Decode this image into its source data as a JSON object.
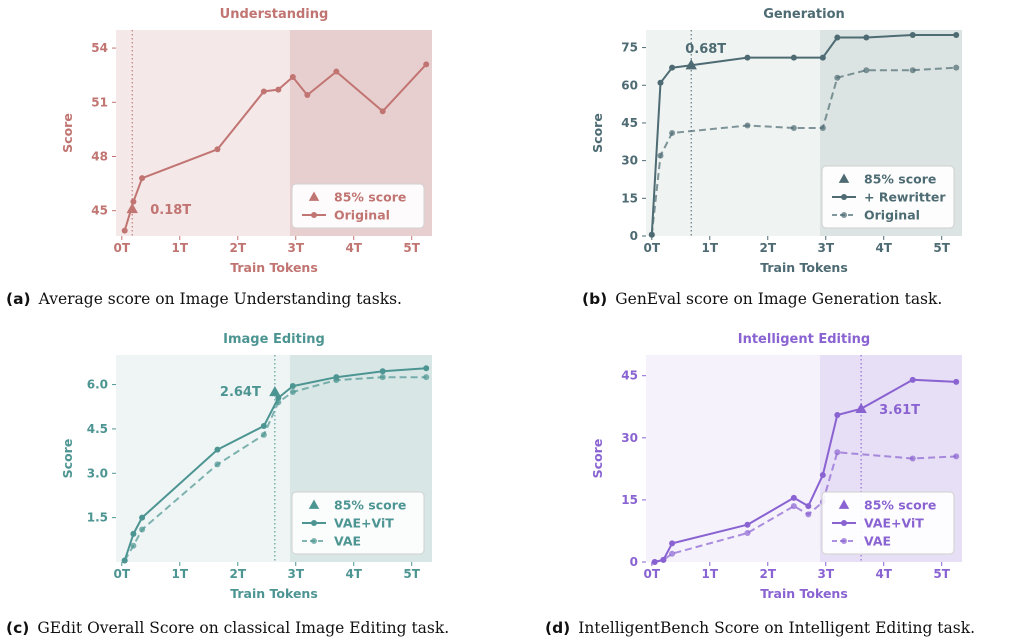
{
  "chart_data": [
    {
      "type": "line",
      "title": "Understanding",
      "xlabel": "Train Tokens",
      "ylabel": "Score",
      "color": "#c17572",
      "bg_light": "#f5e8e8",
      "bg_dark": "#e8cfcf",
      "xlim": [
        -0.1,
        5.35
      ],
      "ylim": [
        43.6,
        55.0
      ],
      "xticks": [
        0,
        1,
        2,
        3,
        4,
        5
      ],
      "xtick_labels": [
        "0T",
        "1T",
        "2T",
        "3T",
        "4T",
        "5T"
      ],
      "yticks": [
        45,
        48,
        51,
        54
      ],
      "ytick_labels": [
        "45",
        "48",
        "51",
        "54"
      ],
      "shade_from": 2.9,
      "series": [
        {
          "name": "Original",
          "style": "solid",
          "x": [
            0.05,
            0.2,
            0.35,
            1.65,
            2.45,
            2.7,
            2.95,
            3.2,
            3.7,
            4.5,
            5.25
          ],
          "y": [
            43.9,
            45.5,
            46.8,
            48.4,
            51.6,
            51.7,
            52.4,
            51.4,
            52.7,
            50.5,
            53.1
          ]
        }
      ],
      "marker_85": {
        "x": 0.18,
        "y": 45.1,
        "label": "0.18T",
        "label_pos": "right"
      },
      "vline_x": 0.18,
      "legend": [
        "85% score",
        "Original"
      ],
      "legend_position": "lower-right"
    },
    {
      "type": "line",
      "title": "Generation",
      "xlabel": "Train Tokens",
      "ylabel": "Score",
      "color": "#4e6b73",
      "bg_light": "#eff3f2",
      "bg_dark": "#dbe4e2",
      "xlim": [
        -0.1,
        5.35
      ],
      "ylim": [
        0,
        82
      ],
      "xticks": [
        0,
        1,
        2,
        3,
        4,
        5
      ],
      "xtick_labels": [
        "0T",
        "1T",
        "2T",
        "3T",
        "4T",
        "5T"
      ],
      "yticks": [
        0,
        15,
        30,
        45,
        60,
        75
      ],
      "ytick_labels": [
        "0",
        "15",
        "30",
        "45",
        "60",
        "75"
      ],
      "shade_from": 2.9,
      "series": [
        {
          "name": "+ Rewritter",
          "style": "solid",
          "x": [
            0.0,
            0.15,
            0.35,
            0.68,
            1.65,
            2.45,
            2.95,
            3.2,
            3.7,
            4.5,
            5.25
          ],
          "y": [
            0.5,
            61,
            67,
            68,
            71,
            71,
            71,
            79,
            79,
            80,
            80
          ]
        },
        {
          "name": "Original",
          "style": "dashed",
          "light": true,
          "x": [
            0.0,
            0.15,
            0.35,
            1.65,
            2.45,
            2.95,
            3.2,
            3.7,
            4.5,
            5.25
          ],
          "y": [
            0.5,
            32,
            41,
            44,
            43,
            43,
            63,
            66,
            66,
            67
          ]
        }
      ],
      "marker_85": {
        "x": 0.68,
        "y": 68,
        "label": "0.68T",
        "label_pos": "above"
      },
      "vline_x": 0.68,
      "legend": [
        "85% score",
        "+ Rewritter",
        "Original"
      ],
      "legend_position": "lower-right"
    },
    {
      "type": "line",
      "title": "Image Editing",
      "xlabel": "Train Tokens",
      "ylabel": "Score",
      "color": "#4d9592",
      "bg_light": "#eff5f5",
      "bg_dark": "#d8e7e6",
      "xlim": [
        -0.1,
        5.35
      ],
      "ylim": [
        0,
        7.0
      ],
      "xticks": [
        0,
        1,
        2,
        3,
        4,
        5
      ],
      "xtick_labels": [
        "0T",
        "1T",
        "2T",
        "3T",
        "4T",
        "5T"
      ],
      "yticks": [
        1.5,
        3.0,
        4.5,
        6.0
      ],
      "ytick_labels": [
        "1.5",
        "3.0",
        "4.5",
        "6.0"
      ],
      "shade_from": 2.9,
      "series": [
        {
          "name": "VAE+ViT",
          "style": "solid",
          "x": [
            0.05,
            0.2,
            0.35,
            1.65,
            2.45,
            2.7,
            2.95,
            3.7,
            4.5,
            5.25
          ],
          "y": [
            0.05,
            0.95,
            1.5,
            3.8,
            4.6,
            5.55,
            5.95,
            6.25,
            6.45,
            6.55
          ]
        },
        {
          "name": "VAE",
          "style": "dashed",
          "light": true,
          "x": [
            0.05,
            0.2,
            0.35,
            1.65,
            2.45,
            2.7,
            2.95,
            3.7,
            4.5,
            5.25
          ],
          "y": [
            0.05,
            0.55,
            1.1,
            3.3,
            4.3,
            5.4,
            5.75,
            6.15,
            6.25,
            6.25
          ]
        }
      ],
      "marker_85": {
        "x": 2.64,
        "y": 5.75,
        "label": "2.64T",
        "label_pos": "left"
      },
      "vline_x": 2.64,
      "legend": [
        "85% score",
        "VAE+ViT",
        "VAE"
      ],
      "legend_position": "lower-right"
    },
    {
      "type": "line",
      "title": "Intelligent Editing",
      "xlabel": "Train Tokens",
      "ylabel": "Score",
      "color": "#8a63d2",
      "bg_light": "#f5f2fb",
      "bg_dark": "#e7dff5",
      "xlim": [
        -0.1,
        5.35
      ],
      "ylim": [
        0,
        50
      ],
      "xticks": [
        0,
        1,
        2,
        3,
        4,
        5
      ],
      "xtick_labels": [
        "0T",
        "1T",
        "2T",
        "3T",
        "4T",
        "5T"
      ],
      "yticks": [
        0,
        15,
        30,
        45
      ],
      "ytick_labels": [
        "0",
        "15",
        "30",
        "45"
      ],
      "shade_from": 2.9,
      "series": [
        {
          "name": "VAE+ViT",
          "style": "solid",
          "x": [
            0.05,
            0.2,
            0.35,
            1.65,
            2.45,
            2.7,
            2.95,
            3.2,
            3.61,
            4.5,
            5.25
          ],
          "y": [
            0,
            0.5,
            4.5,
            9,
            15.5,
            13.5,
            21,
            35.5,
            37,
            44,
            43.5
          ]
        },
        {
          "name": "VAE",
          "style": "dashed",
          "light": true,
          "x": [
            0.05,
            0.2,
            0.35,
            1.65,
            2.45,
            2.7,
            2.95,
            3.2,
            4.5,
            5.25
          ],
          "y": [
            0,
            0.5,
            2,
            7,
            13.5,
            11.5,
            14.5,
            26.5,
            25,
            25.5
          ]
        }
      ],
      "marker_85": {
        "x": 3.61,
        "y": 37,
        "label": "3.61T",
        "label_pos": "right"
      },
      "vline_x": 3.61,
      "legend": [
        "85% score",
        "VAE+ViT",
        "VAE"
      ],
      "legend_position": "lower-right"
    }
  ],
  "captions": [
    {
      "tag": "(a)",
      "text": "Average score on Image Understanding tasks."
    },
    {
      "tag": "(b)",
      "text": "GenEval score on Image Generation task."
    },
    {
      "tag": "(c)",
      "text": "GEdit Overall Score on classical Image Editing task."
    },
    {
      "tag": "(d)",
      "text": "IntelligentBench Score on Intelligent Editing task."
    }
  ]
}
